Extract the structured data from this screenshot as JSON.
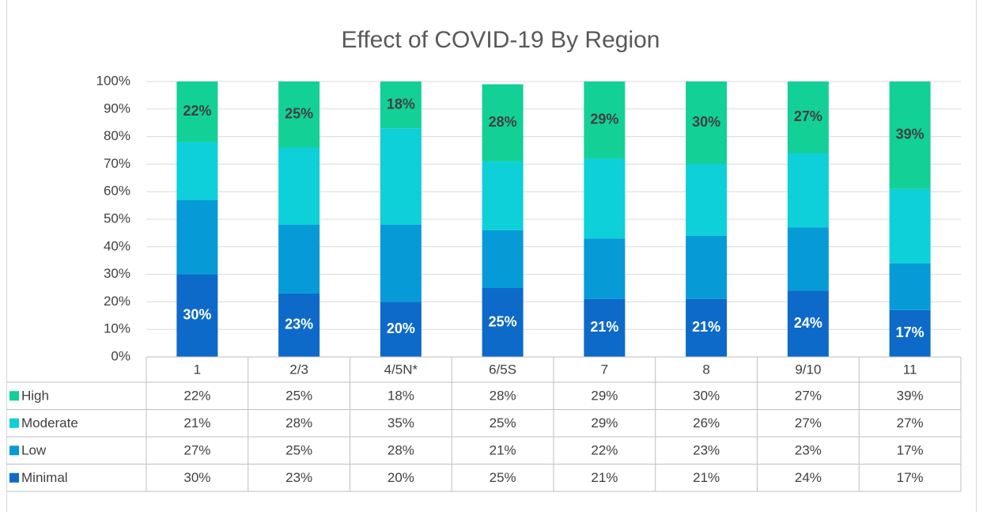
{
  "chart_data": {
    "type": "stacked_bar_100",
    "title": "Effect of COVID-19 By Region",
    "categories": [
      "1",
      "2/3",
      "4/5N*",
      "6/5S",
      "7",
      "8",
      "9/10",
      "11"
    ],
    "series": [
      {
        "name": "Minimal",
        "color": "#0d6ac8",
        "label_color": "#ffffff",
        "data_labels": true,
        "values": [
          30,
          23,
          20,
          25,
          21,
          21,
          24,
          17
        ],
        "value_labels": [
          "30%",
          "23%",
          "20%",
          "25%",
          "21%",
          "21%",
          "24%",
          "17%"
        ]
      },
      {
        "name": "Low",
        "color": "#069bd7",
        "label_color": "#404040",
        "data_labels": false,
        "values": [
          27,
          25,
          28,
          21,
          22,
          23,
          23,
          17
        ],
        "value_labels": [
          "27%",
          "25%",
          "28%",
          "21%",
          "22%",
          "23%",
          "23%",
          "17%"
        ]
      },
      {
        "name": "Moderate",
        "color": "#0dd0d8",
        "label_color": "#404040",
        "data_labels": false,
        "values": [
          21,
          28,
          35,
          25,
          29,
          26,
          27,
          27
        ],
        "value_labels": [
          "21%",
          "28%",
          "35%",
          "25%",
          "29%",
          "26%",
          "27%",
          "27%"
        ]
      },
      {
        "name": "High",
        "color": "#13d096",
        "label_color": "#404040",
        "data_labels": true,
        "values": [
          22,
          25,
          18,
          28,
          29,
          30,
          27,
          39
        ],
        "value_labels": [
          "22%",
          "25%",
          "18%",
          "28%",
          "29%",
          "30%",
          "27%",
          "39%"
        ]
      }
    ],
    "ylim": [
      0,
      100
    ],
    "yticks": [
      {
        "value": 0,
        "label": "0%"
      },
      {
        "value": 10,
        "label": "10%"
      },
      {
        "value": 20,
        "label": "20%"
      },
      {
        "value": 30,
        "label": "30%"
      },
      {
        "value": 40,
        "label": "40%"
      },
      {
        "value": 50,
        "label": "50%"
      },
      {
        "value": 60,
        "label": "60%"
      },
      {
        "value": 70,
        "label": "70%"
      },
      {
        "value": 80,
        "label": "80%"
      },
      {
        "value": 90,
        "label": "90%"
      },
      {
        "value": 100,
        "label": "100%"
      }
    ],
    "grid": true,
    "legend": "data-table"
  }
}
